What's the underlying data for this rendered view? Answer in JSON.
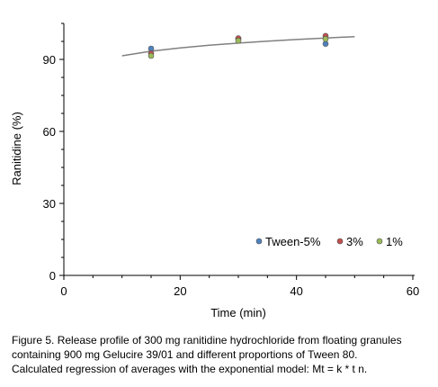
{
  "chart_data": {
    "type": "scatter",
    "xlabel": "Time (min)",
    "ylabel": "Ranitidine (%)",
    "xlim": [
      0,
      60
    ],
    "ylim": [
      0,
      105
    ],
    "xticks": [
      0,
      20,
      40,
      60
    ],
    "yticks": [
      0,
      30,
      60,
      90
    ],
    "grid": false,
    "legend_position": "bottom-right",
    "series": [
      {
        "name": "Tween-5%",
        "color": "#4f81bd",
        "x": [
          15,
          30,
          45
        ],
        "y": [
          94.5,
          98.5,
          96.5
        ]
      },
      {
        "name": "3%",
        "color": "#c0504d",
        "x": [
          15,
          30,
          45
        ],
        "y": [
          92.5,
          98.8,
          99.8
        ]
      },
      {
        "name": "1%",
        "color": "#9bbb59",
        "x": [
          15,
          30,
          45
        ],
        "y": [
          91.5,
          97.8,
          98.5
        ]
      }
    ],
    "fit": {
      "model": "Mt = k * t n",
      "x": [
        10,
        15,
        20,
        25,
        30,
        35,
        40,
        45,
        50
      ],
      "y": [
        91.5,
        93.4,
        94.8,
        95.9,
        96.8,
        97.6,
        98.3,
        98.9,
        99.5
      ],
      "color": "#808080"
    }
  },
  "caption": {
    "line1": "Figure 5. Release profile of 300 mg ranitidine hydrochloride from floating granules",
    "line2": "containing 900 mg Gelucire 39/01 and different proportions of Tween 80.",
    "line3": "Calculated regression of averages with the exponential model: Mt = k * t n."
  }
}
